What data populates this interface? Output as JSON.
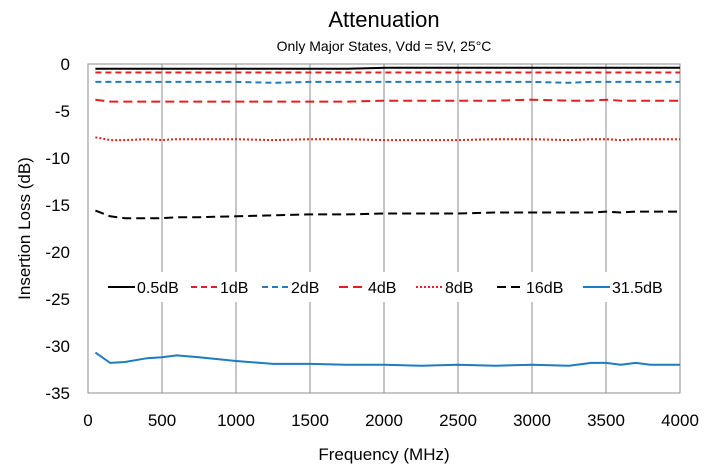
{
  "chart_data": {
    "type": "line",
    "title": "Attenuation",
    "subtitle": "Only Major States, Vdd = 5V, 25°C",
    "xlabel": "Frequency (MHz)",
    "ylabel": "Insertion Loss (dB)",
    "xlim": [
      0,
      4000
    ],
    "ylim": [
      -35,
      0
    ],
    "x_ticks": [
      0,
      500,
      1000,
      1500,
      2000,
      2500,
      3000,
      3500,
      4000
    ],
    "y_ticks": [
      0,
      -5,
      -10,
      -15,
      -20,
      -25,
      -30,
      -35
    ],
    "grid": "vertical",
    "legend_position": "inside-middle",
    "x": [
      50,
      150,
      250,
      400,
      500,
      600,
      750,
      1000,
      1250,
      1500,
      1750,
      2000,
      2250,
      2500,
      2750,
      3000,
      3250,
      3400,
      3500,
      3600,
      3700,
      3800,
      4000
    ],
    "series": [
      {
        "name": "0.5dB",
        "color": "#000000",
        "dash": "solid",
        "values": [
          -0.5,
          -0.5,
          -0.5,
          -0.5,
          -0.5,
          -0.5,
          -0.5,
          -0.5,
          -0.5,
          -0.5,
          -0.5,
          -0.4,
          -0.4,
          -0.4,
          -0.4,
          -0.4,
          -0.4,
          -0.4,
          -0.4,
          -0.4,
          -0.4,
          -0.4,
          -0.4
        ]
      },
      {
        "name": "1dB",
        "color": "#e02020",
        "dash": "dashed",
        "values": [
          -0.9,
          -0.9,
          -0.9,
          -0.9,
          -0.9,
          -0.9,
          -0.9,
          -0.9,
          -0.9,
          -0.9,
          -0.9,
          -0.9,
          -0.9,
          -0.9,
          -0.9,
          -0.9,
          -0.9,
          -0.9,
          -0.9,
          -0.9,
          -0.9,
          -0.9,
          -0.9
        ]
      },
      {
        "name": "2dB",
        "color": "#1f7bc0",
        "dash": "dashed",
        "values": [
          -1.9,
          -1.9,
          -1.9,
          -1.9,
          -1.9,
          -1.9,
          -1.9,
          -1.9,
          -2.0,
          -1.9,
          -1.9,
          -1.9,
          -1.9,
          -1.9,
          -1.9,
          -1.9,
          -2.0,
          -1.9,
          -1.9,
          -1.9,
          -1.9,
          -1.9,
          -1.9
        ]
      },
      {
        "name": "4dB",
        "color": "#e02020",
        "dash": "longdash",
        "values": [
          -3.8,
          -4.0,
          -4.0,
          -4.0,
          -4.0,
          -4.0,
          -4.0,
          -4.0,
          -4.0,
          -4.0,
          -4.0,
          -3.9,
          -3.9,
          -3.9,
          -3.9,
          -3.8,
          -3.9,
          -3.9,
          -3.8,
          -3.9,
          -3.9,
          -3.9,
          -3.9
        ]
      },
      {
        "name": "8dB",
        "color": "#e02020",
        "dash": "dotted",
        "values": [
          -7.8,
          -8.1,
          -8.1,
          -8.0,
          -8.1,
          -8.0,
          -8.0,
          -8.0,
          -8.1,
          -8.0,
          -8.0,
          -8.1,
          -8.1,
          -8.1,
          -8.0,
          -8.0,
          -8.1,
          -8.0,
          -8.0,
          -8.1,
          -8.0,
          -8.0,
          -8.0
        ]
      },
      {
        "name": "16dB",
        "color": "#000000",
        "dash": "longdash",
        "values": [
          -15.6,
          -16.2,
          -16.4,
          -16.4,
          -16.4,
          -16.3,
          -16.3,
          -16.2,
          -16.1,
          -16.0,
          -16.0,
          -15.9,
          -15.9,
          -15.9,
          -15.8,
          -15.8,
          -15.8,
          -15.8,
          -15.7,
          -15.8,
          -15.7,
          -15.7,
          -15.7
        ]
      },
      {
        "name": "31.5dB",
        "color": "#1f7bc0",
        "dash": "solid",
        "values": [
          -30.7,
          -31.8,
          -31.7,
          -31.3,
          -31.2,
          -31.0,
          -31.2,
          -31.6,
          -31.9,
          -31.9,
          -32.0,
          -32.0,
          -32.1,
          -32.0,
          -32.1,
          -32.0,
          -32.1,
          -31.8,
          -31.8,
          -32.0,
          -31.8,
          -32.0,
          -32.0
        ]
      }
    ]
  }
}
